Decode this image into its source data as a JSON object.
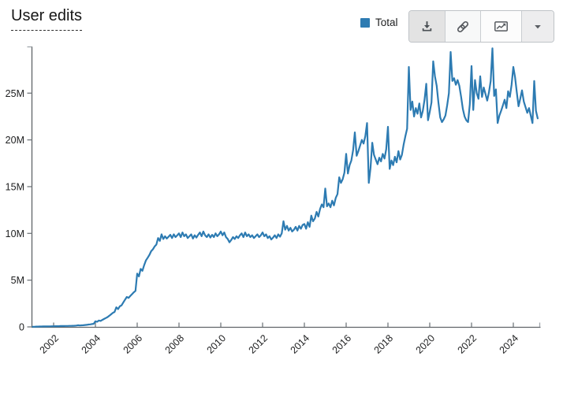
{
  "header": {
    "title": "User edits"
  },
  "legend": {
    "label": "Total",
    "swatch_color": "#2d7bb2"
  },
  "toolbar": {
    "buttons": [
      {
        "name": "download",
        "icon": "download-icon"
      },
      {
        "name": "copy-link",
        "icon": "link-icon"
      },
      {
        "name": "chart-type",
        "icon": "line-chart-icon"
      },
      {
        "name": "more-options",
        "icon": "caret-down-icon"
      }
    ]
  },
  "chart_data": {
    "type": "line",
    "title": "User edits",
    "xlabel": "",
    "ylabel": "",
    "x_ticks": [
      2002,
      2004,
      2006,
      2008,
      2010,
      2012,
      2014,
      2016,
      2018,
      2020,
      2022,
      2024
    ],
    "y_ticks": [
      "0",
      "5M",
      "10M",
      "15M",
      "20M",
      "25M"
    ],
    "y_tick_values_millions": [
      0,
      5,
      10,
      15,
      20,
      25
    ],
    "xlim": [
      2001,
      2025.5
    ],
    "ylim_millions": [
      0,
      30
    ],
    "grid": "off",
    "legend_position": "top-right",
    "series": [
      {
        "name": "Total",
        "color": "#2d7bb2",
        "unit": "edits per month (millions)",
        "start": "2001-01",
        "monthly_values_millions": [
          0.02,
          0.02,
          0.03,
          0.03,
          0.04,
          0.04,
          0.05,
          0.05,
          0.05,
          0.06,
          0.06,
          0.07,
          0.07,
          0.08,
          0.08,
          0.08,
          0.09,
          0.09,
          0.09,
          0.1,
          0.1,
          0.11,
          0.11,
          0.12,
          0.13,
          0.14,
          0.18,
          0.15,
          0.17,
          0.18,
          0.2,
          0.22,
          0.25,
          0.27,
          0.3,
          0.33,
          0.6,
          0.55,
          0.68,
          0.64,
          0.75,
          0.85,
          0.95,
          1.05,
          1.2,
          1.35,
          1.5,
          1.6,
          2.1,
          1.9,
          2.2,
          2.3,
          2.6,
          2.9,
          3.2,
          3.1,
          3.3,
          3.5,
          3.7,
          3.85,
          5.7,
          5.4,
          6.2,
          6.0,
          6.6,
          7.1,
          7.4,
          7.7,
          8.1,
          8.3,
          8.6,
          8.8,
          9.5,
          9.2,
          9.9,
          9.4,
          9.7,
          9.45,
          9.65,
          9.85,
          9.5,
          9.9,
          9.6,
          9.8,
          10.0,
          9.6,
          10.1,
          9.7,
          9.9,
          9.5,
          9.7,
          9.9,
          9.45,
          9.8,
          9.55,
          9.85,
          10.1,
          9.7,
          10.2,
          9.8,
          9.6,
          9.9,
          9.55,
          9.85,
          9.6,
          10.0,
          9.7,
          9.9,
          10.2,
          9.8,
          10.1,
          9.6,
          9.4,
          9.05,
          9.3,
          9.6,
          9.4,
          9.7,
          9.5,
          9.8,
          10.0,
          9.6,
          10.1,
          9.7,
          9.9,
          9.6,
          9.8,
          9.5,
          9.7,
          9.9,
          9.6,
          9.8,
          10.1,
          9.7,
          9.9,
          9.5,
          9.7,
          9.35,
          9.55,
          9.8,
          9.5,
          9.9,
          9.65,
          10.0,
          11.3,
          10.4,
          10.8,
          10.3,
          10.6,
          10.2,
          10.4,
          10.7,
          10.3,
          10.8,
          10.5,
          10.9,
          11.0,
          10.5,
          11.2,
          10.7,
          11.9,
          11.3,
          11.6,
          12.3,
          11.8,
          12.6,
          13.1,
          12.8,
          14.8,
          12.9,
          13.2,
          12.8,
          13.5,
          13.0,
          13.8,
          14.2,
          16.0,
          15.4,
          15.8,
          16.5,
          18.5,
          16.4,
          17.3,
          17.8,
          18.9,
          20.8,
          18.3,
          18.8,
          19.4,
          20.0,
          19.6,
          20.4,
          21.8,
          15.4,
          17.0,
          19.7,
          18.4,
          17.9,
          17.4,
          18.1,
          17.7,
          18.5,
          18.0,
          19.0,
          21.4,
          16.9,
          17.8,
          17.3,
          18.2,
          17.6,
          18.8,
          17.9,
          18.4,
          19.5,
          20.4,
          21.2,
          27.8,
          23.2,
          24.1,
          22.5,
          23.4,
          22.8,
          23.9,
          22.4,
          23.1,
          24.3,
          26.0,
          22.1,
          23.0,
          24.0,
          28.4,
          26.8,
          25.8,
          24.0,
          22.4,
          21.9,
          22.2,
          22.6,
          23.7,
          25.0,
          29.4,
          26.3,
          26.6,
          25.9,
          26.4,
          25.8,
          24.6,
          23.3,
          22.5,
          22.1,
          21.9,
          23.8,
          27.9,
          23.2,
          26.4,
          25.0,
          24.4,
          26.8,
          24.6,
          25.6,
          24.9,
          24.2,
          25.1,
          26.3,
          29.8,
          24.7,
          25.4,
          21.8,
          22.6,
          23.1,
          23.7,
          24.3,
          23.4,
          25.2,
          24.6,
          25.9,
          27.8,
          26.7,
          25.1,
          23.6,
          24.4,
          25.3,
          24.1,
          23.5,
          22.9,
          23.4,
          22.6,
          21.8,
          26.3,
          23.1,
          22.3
        ]
      }
    ]
  },
  "colors": {
    "line": "#2d7bb2",
    "axis": "#606468",
    "tick": "#73797e",
    "text": "#202122",
    "toolbar_border": "#bfc3c7"
  }
}
